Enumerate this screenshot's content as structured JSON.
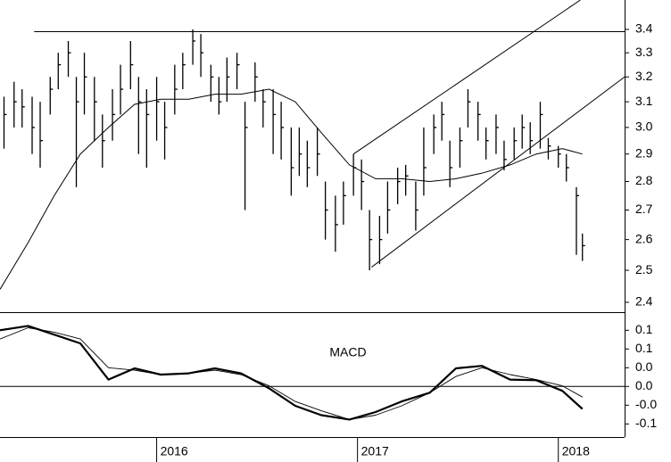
{
  "chart_data": [
    {
      "type": "ohlc",
      "log_scale": true,
      "color": "#000000",
      "xlim": [
        2015.22,
        2018.33
      ],
      "ylim": [
        2.37,
        3.53
      ],
      "yticks": [
        2.4,
        2.5,
        2.6,
        2.7,
        2.8,
        2.9,
        {
          "value": 3,
          "label": "3.0"
        },
        3.1,
        3.2,
        3.3,
        3.4
      ],
      "x": [
        2015.24,
        2015.29,
        2015.33,
        2015.38,
        2015.42,
        2015.47,
        2015.51,
        2015.56,
        2015.6,
        2015.64,
        2015.69,
        2015.73,
        2015.78,
        2015.82,
        2015.87,
        2015.91,
        2015.95,
        2016.0,
        2016.04,
        2016.09,
        2016.13,
        2016.18,
        2016.22,
        2016.27,
        2016.31,
        2016.35,
        2016.4,
        2016.44,
        2016.49,
        2016.53,
        2016.58,
        2016.62,
        2016.67,
        2016.71,
        2016.75,
        2016.8,
        2016.84,
        2016.89,
        2016.93,
        2016.98,
        2017.02,
        2017.06,
        2017.11,
        2017.15,
        2017.2,
        2017.24,
        2017.29,
        2017.33,
        2017.38,
        2017.42,
        2017.46,
        2017.51,
        2017.55,
        2017.6,
        2017.64,
        2017.69,
        2017.73,
        2017.78,
        2017.82,
        2017.86,
        2017.91,
        2017.95,
        2018.0,
        2018.04,
        2018.09,
        2018.12
      ],
      "high": [
        3.12,
        3.18,
        3.15,
        3.12,
        3.1,
        3.2,
        3.3,
        3.35,
        3.2,
        3.3,
        3.2,
        3.05,
        3.15,
        3.25,
        3.35,
        3.2,
        3.15,
        3.2,
        3.1,
        3.25,
        3.3,
        3.4,
        3.38,
        3.25,
        3.2,
        3.28,
        3.3,
        3.1,
        3.26,
        3.15,
        3.15,
        3.1,
        3.0,
        3.0,
        2.95,
        3.0,
        2.8,
        2.75,
        2.8,
        2.9,
        2.88,
        2.7,
        2.68,
        2.8,
        2.85,
        2.86,
        2.8,
        3.0,
        3.05,
        3.1,
        2.95,
        3.0,
        3.15,
        3.1,
        3.0,
        3.05,
        2.95,
        3.0,
        3.05,
        3.02,
        3.1,
        2.96,
        2.93,
        2.9,
        2.78,
        2.62
      ],
      "low": [
        2.92,
        3.0,
        3.0,
        2.9,
        2.85,
        3.05,
        3.15,
        3.2,
        2.78,
        3.05,
        2.95,
        2.85,
        2.95,
        3.05,
        3.15,
        2.9,
        2.85,
        2.95,
        2.88,
        3.05,
        3.15,
        3.25,
        3.2,
        3.1,
        3.05,
        3.1,
        3.15,
        2.7,
        3.1,
        3.0,
        2.9,
        2.88,
        2.75,
        2.82,
        2.78,
        2.82,
        2.6,
        2.56,
        2.65,
        2.75,
        2.7,
        2.5,
        2.52,
        2.62,
        2.72,
        2.75,
        2.63,
        2.75,
        2.9,
        2.95,
        2.78,
        2.85,
        3.0,
        2.95,
        2.88,
        2.9,
        2.84,
        2.88,
        2.92,
        2.9,
        2.92,
        2.88,
        2.85,
        2.8,
        2.55,
        2.53
      ],
      "close": [
        3.05,
        3.1,
        3.08,
        3.0,
        2.95,
        3.15,
        3.25,
        3.3,
        3.1,
        3.2,
        3.1,
        2.95,
        3.05,
        3.15,
        3.25,
        3.1,
        3.05,
        3.1,
        3.0,
        3.15,
        3.25,
        3.35,
        3.3,
        3.2,
        3.1,
        3.2,
        3.25,
        3.0,
        3.2,
        3.1,
        3.05,
        3.0,
        2.85,
        2.9,
        2.85,
        2.9,
        2.7,
        2.65,
        2.75,
        2.85,
        2.8,
        2.6,
        2.6,
        2.7,
        2.8,
        2.82,
        2.7,
        2.85,
        3.0,
        3.05,
        2.85,
        2.95,
        3.1,
        3.05,
        2.95,
        3.0,
        2.88,
        2.95,
        3.0,
        2.95,
        3.05,
        2.93,
        2.9,
        2.85,
        2.75,
        2.58
      ],
      "moving_average": {
        "x": [
          2015.22,
          2015.36,
          2015.49,
          2015.62,
          2015.76,
          2015.89,
          2016.02,
          2016.16,
          2016.29,
          2016.42,
          2016.56,
          2016.69,
          2016.82,
          2016.96,
          2017.09,
          2017.22,
          2017.36,
          2017.49,
          2017.62,
          2017.76,
          2017.89,
          2018.02,
          2018.12
        ],
        "values": [
          2.44,
          2.59,
          2.75,
          2.9,
          3.0,
          3.09,
          3.11,
          3.11,
          3.13,
          3.13,
          3.15,
          3.1,
          2.98,
          2.86,
          2.81,
          2.81,
          2.8,
          2.81,
          2.83,
          2.86,
          2.9,
          2.92,
          2.9
        ]
      },
      "trendlines": [
        {
          "x": [
            2015.39,
            2018.33
          ],
          "values": [
            3.39,
            3.39
          ]
        },
        {
          "x": [
            2016.98,
            2018.11
          ],
          "values": [
            2.9,
            3.53
          ]
        },
        {
          "x": [
            2017.07,
            2018.33
          ],
          "values": [
            2.51,
            3.2
          ]
        }
      ]
    },
    {
      "type": "line",
      "title": "MACD",
      "xlim": [
        2015.22,
        2018.33
      ],
      "xticks": [
        2016,
        2017,
        2018
      ],
      "ylim": [
        -0.081,
        0.119
      ],
      "yticks": [
        {
          "value": -0.06,
          "label": "-0.1"
        },
        {
          "value": -0.03,
          "label": "-0.0"
        },
        {
          "value": 0,
          "label": "0.0"
        },
        {
          "value": 0.03,
          "label": "0.0"
        },
        {
          "value": 0.06,
          "label": "0.1"
        },
        {
          "value": 0.09,
          "label": "0.1"
        }
      ],
      "zero_line": true,
      "x": [
        2015.22,
        2015.36,
        2015.49,
        2015.62,
        2015.76,
        2015.89,
        2016.02,
        2016.16,
        2016.29,
        2016.42,
        2016.56,
        2016.69,
        2016.82,
        2016.96,
        2017.09,
        2017.22,
        2017.36,
        2017.49,
        2017.62,
        2017.76,
        2017.89,
        2018.02,
        2018.12
      ],
      "series": [
        {
          "color": "#000000",
          "width": 2.2,
          "values": [
            0.09,
            0.097,
            0.083,
            0.069,
            0.011,
            0.029,
            0.019,
            0.021,
            0.029,
            0.021,
            -0.003,
            -0.031,
            -0.046,
            -0.053,
            -0.041,
            -0.024,
            -0.01,
            0.029,
            0.033,
            0.011,
            0.01,
            -0.007,
            -0.036
          ]
        },
        {
          "color": "#000000",
          "width": 0.9,
          "values": [
            0.076,
            0.094,
            0.087,
            0.076,
            0.03,
            0.026,
            0.019,
            0.021,
            0.026,
            0.019,
            0.001,
            -0.024,
            -0.039,
            -0.053,
            -0.046,
            -0.031,
            -0.01,
            0.016,
            0.03,
            0.019,
            0.011,
            0.001,
            -0.017
          ]
        }
      ]
    }
  ]
}
